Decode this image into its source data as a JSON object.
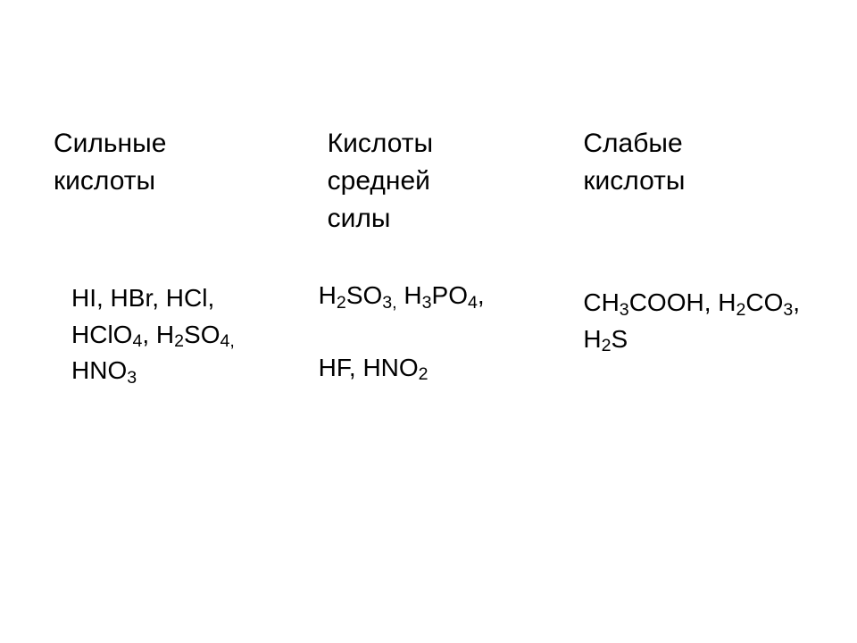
{
  "columns": {
    "strong": {
      "heading_line1": "Сильные",
      "heading_line2": "кислоты",
      "content_html": "HI, HBr, HCl, HClO<sub>4</sub>, H<sub>2</sub>SO<sub>4,</sub> HNO<sub>3</sub>"
    },
    "medium": {
      "heading_line1": "Кислоты",
      "heading_line2": "средней",
      "heading_line3": "силы",
      "content_line1_html": "H<sub>2</sub>SO<sub>3,</sub> H<sub>3</sub>PO<sub>4</sub>,",
      "content_line2_html": "HF, HNO<sub>2</sub>"
    },
    "weak": {
      "heading_line1": "Слабые",
      "heading_line2": "кислоты",
      "content_html": "CH<sub>3</sub>COOH, H<sub>2</sub>CO<sub>3</sub>, H<sub>2</sub>S"
    }
  },
  "style": {
    "background_color": "#ffffff",
    "text_color": "#000000",
    "heading_fontsize": 30,
    "content_fontsize": 28,
    "font_family": "Arial"
  }
}
